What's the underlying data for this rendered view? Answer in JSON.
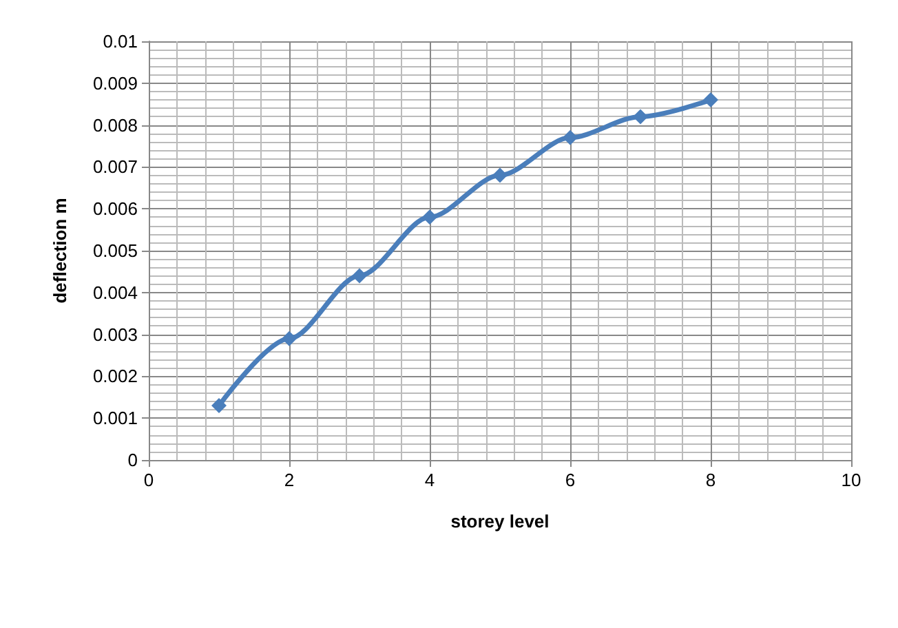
{
  "chart_data": {
    "type": "line",
    "xlabel": "storey level",
    "ylabel": "deflection m",
    "x": [
      1,
      2,
      3,
      4,
      5,
      6,
      7,
      8
    ],
    "series": [
      {
        "color": "#4a7ebb",
        "values": [
          0.0013,
          0.0029,
          0.0044,
          0.0058,
          0.0068,
          0.0077,
          0.0082,
          0.0086
        ]
      }
    ],
    "xlim": [
      0,
      10
    ],
    "xticks": [
      0,
      2,
      4,
      6,
      8,
      10
    ],
    "ylim": [
      0,
      0.01
    ],
    "yticks": [
      0,
      0.001,
      0.002,
      0.003,
      0.004,
      0.005,
      0.006,
      0.007,
      0.008,
      0.009,
      0.01
    ],
    "grid": true,
    "marker": "diamond",
    "line_style": "solid"
  }
}
